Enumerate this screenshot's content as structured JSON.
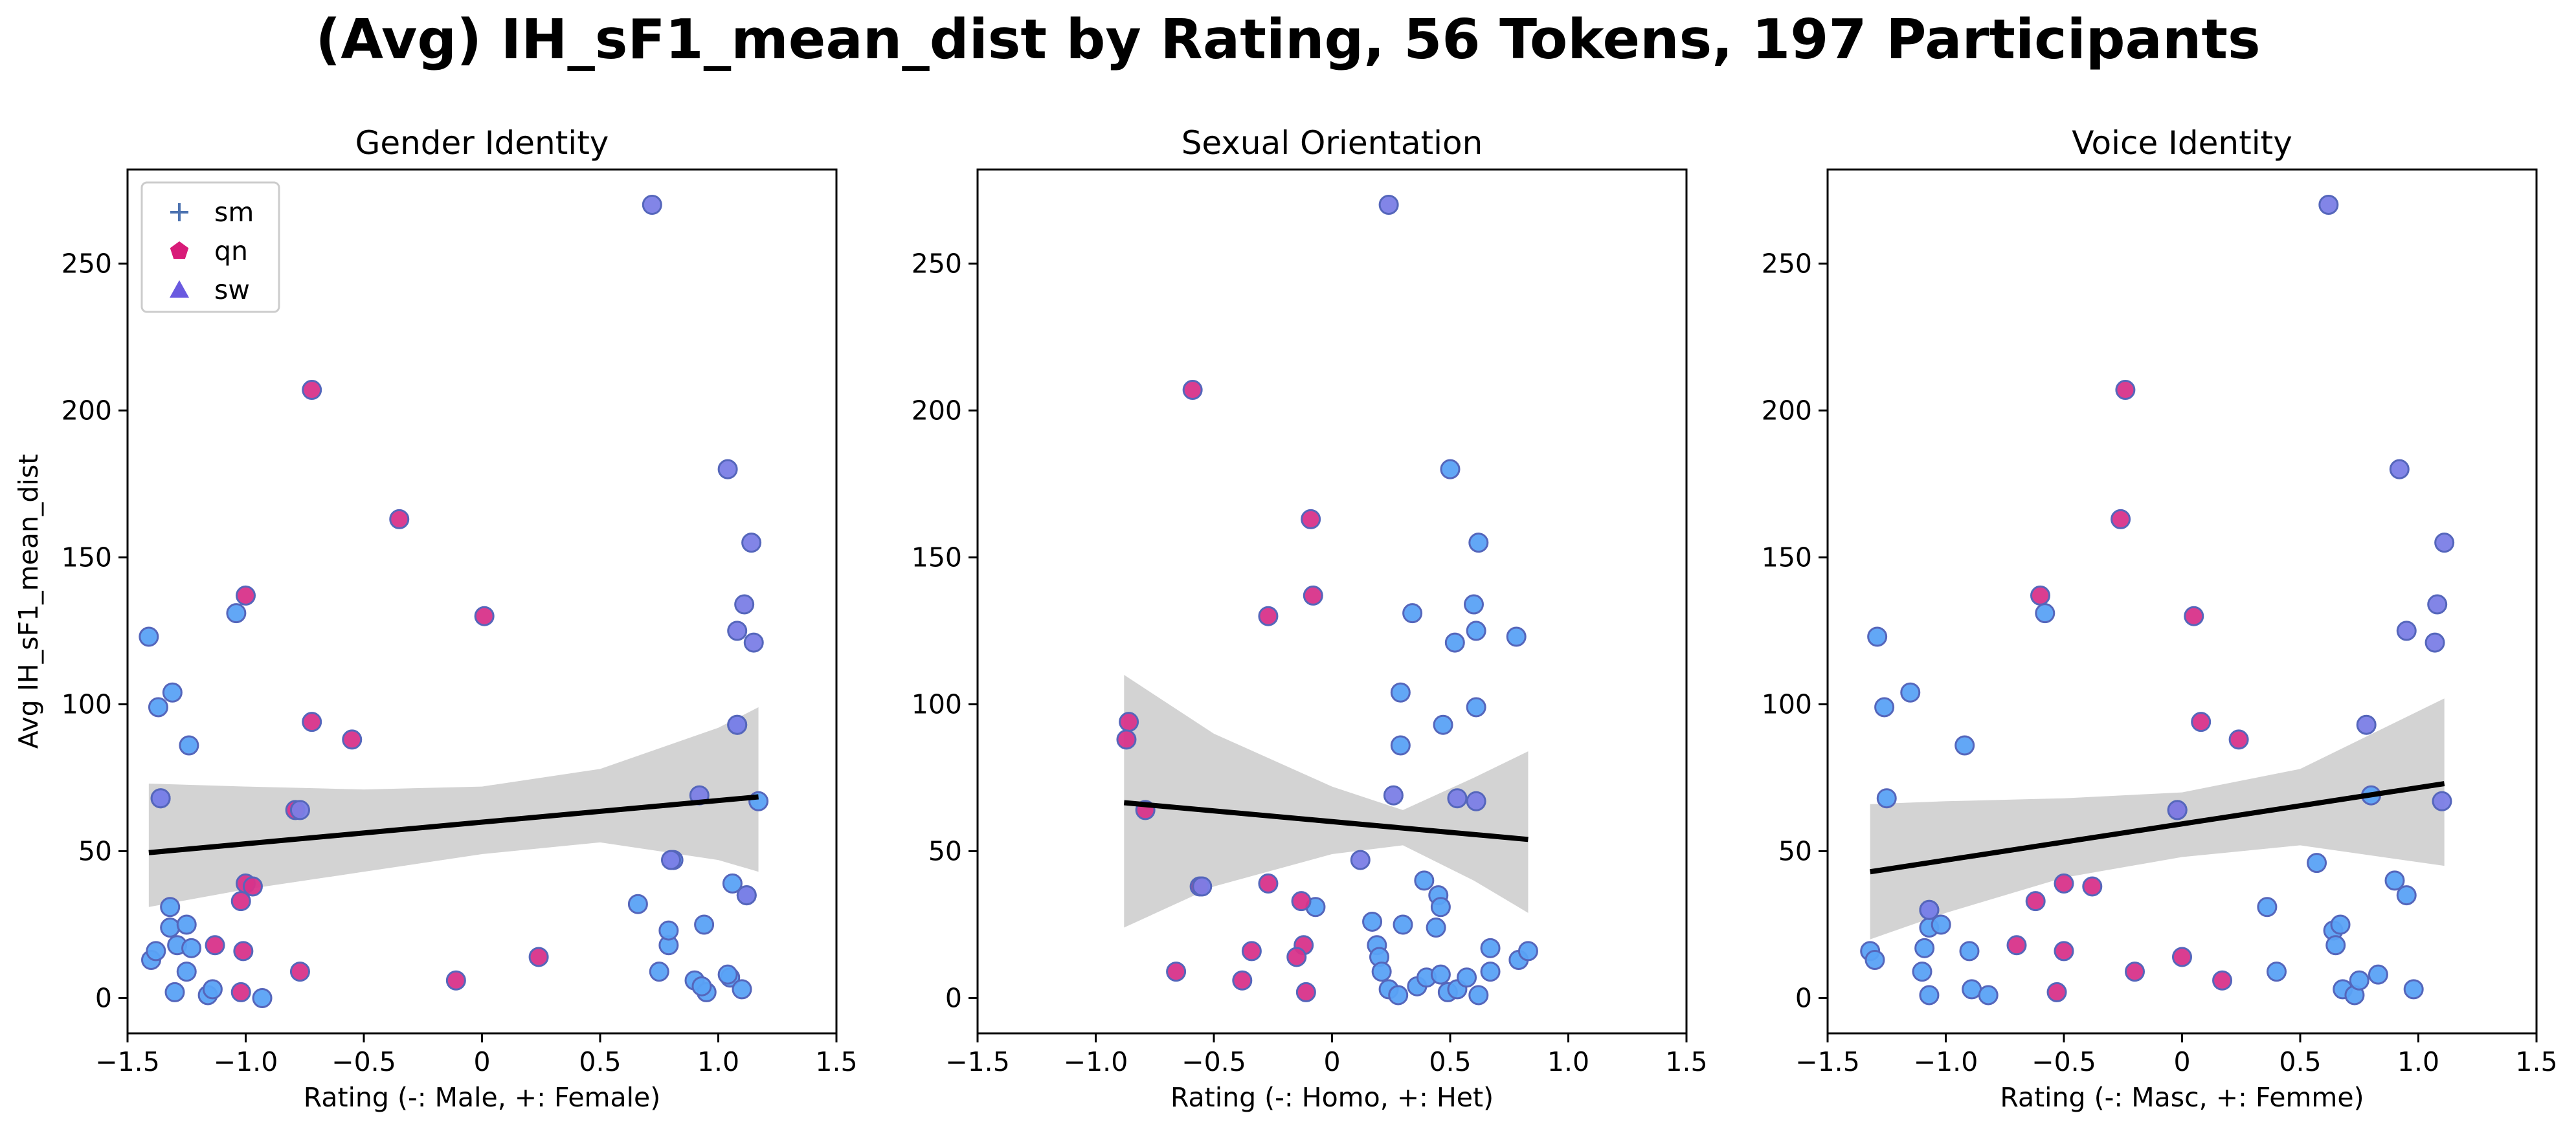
{
  "figure": {
    "title": "(Avg) IH_sF1_mean_dist by Rating, 56 Tokens, 197 Participants"
  },
  "legend": {
    "placement": "upper-left",
    "panel": 0,
    "items": [
      {
        "label": "sm",
        "marker": "plus",
        "color": "#4c72b0"
      },
      {
        "label": "qn",
        "marker": "pentagon",
        "color": "#d81b78"
      },
      {
        "label": "sw",
        "marker": "triangle",
        "color": "#6a5ae0"
      }
    ]
  },
  "colors": {
    "sm": "#5aa2f5",
    "qn": "#d8338a",
    "sw": "#7b7ee6",
    "marker_edge": "#5566bb",
    "fit_line": "#000000",
    "ci_band": "#d3d3d3"
  },
  "chart_data": [
    {
      "type": "scatter",
      "title": "Gender Identity",
      "xlabel": "Rating (-: Male, +: Female)",
      "ylabel": "Avg IH_sF1_mean_dist",
      "xlim": [
        -1.5,
        1.5
      ],
      "ylim": [
        -12,
        282
      ],
      "xticks": [
        -1.5,
        -1.0,
        -0.5,
        0.0,
        0.5,
        1.0,
        1.5
      ],
      "yticks": [
        0,
        50,
        100,
        150,
        200,
        250
      ],
      "series": [
        {
          "name": "sm",
          "points": [
            [
              -1.41,
              123
            ],
            [
              -1.37,
              99
            ],
            [
              -1.31,
              104
            ],
            [
              -1.24,
              86
            ],
            [
              -1.36,
              68
            ],
            [
              -1.4,
              13
            ],
            [
              -1.38,
              16
            ],
            [
              -1.32,
              24
            ],
            [
              -1.32,
              31
            ],
            [
              -1.29,
              18
            ],
            [
              -1.25,
              25
            ],
            [
              -1.23,
              17
            ],
            [
              -1.25,
              9
            ],
            [
              -1.3,
              2
            ],
            [
              -1.16,
              1
            ],
            [
              -1.14,
              3
            ],
            [
              -1.04,
              131
            ],
            [
              -0.93,
              0
            ],
            [
              0.66,
              32
            ],
            [
              0.75,
              9
            ],
            [
              0.79,
              18
            ],
            [
              0.79,
              23
            ],
            [
              0.81,
              47
            ],
            [
              0.9,
              6
            ],
            [
              0.94,
              25
            ],
            [
              0.95,
              2
            ],
            [
              1.05,
              7
            ],
            [
              1.06,
              39
            ],
            [
              1.08,
              93
            ],
            [
              1.1,
              3
            ],
            [
              1.12,
              35
            ],
            [
              1.17,
              67
            ],
            [
              1.04,
              8
            ],
            [
              0.93,
              4
            ]
          ]
        },
        {
          "name": "qn",
          "points": [
            [
              -0.72,
              207
            ],
            [
              -0.35,
              163
            ],
            [
              -1.0,
              137
            ],
            [
              0.01,
              130
            ],
            [
              -0.72,
              94
            ],
            [
              -0.55,
              88
            ],
            [
              -0.79,
              64
            ],
            [
              -1.0,
              39
            ],
            [
              -0.97,
              38
            ],
            [
              -1.02,
              33
            ],
            [
              -1.01,
              16
            ],
            [
              -1.13,
              18
            ],
            [
              -0.77,
              9
            ],
            [
              0.24,
              14
            ],
            [
              -0.11,
              6
            ],
            [
              -1.02,
              2
            ]
          ]
        },
        {
          "name": "sw",
          "points": [
            [
              0.72,
              270
            ],
            [
              1.04,
              180
            ],
            [
              1.14,
              155
            ],
            [
              1.11,
              134
            ],
            [
              1.08,
              125
            ],
            [
              1.15,
              121
            ],
            [
              1.08,
              93
            ],
            [
              0.92,
              69
            ],
            [
              -1.36,
              68
            ],
            [
              0.8,
              47
            ],
            [
              1.12,
              35
            ],
            [
              -0.77,
              64
            ]
          ]
        }
      ],
      "fit": {
        "x": [
          -1.41,
          1.17
        ],
        "y": [
          49.5,
          68.5
        ]
      },
      "ci": {
        "x": [
          -1.41,
          -1.0,
          -0.5,
          0.0,
          0.5,
          1.0,
          1.17
        ],
        "upper": [
          73,
          72,
          71,
          72,
          78,
          92,
          99
        ],
        "lower": [
          31,
          37,
          43,
          49,
          53,
          47,
          43
        ]
      }
    },
    {
      "type": "scatter",
      "title": "Sexual Orientation",
      "xlabel": "Rating (-: Homo, +: Het)",
      "ylabel": "",
      "xlim": [
        -1.5,
        1.5
      ],
      "ylim": [
        -12,
        282
      ],
      "xticks": [
        -1.5,
        -1.0,
        -0.5,
        0.0,
        0.5,
        1.0,
        1.5
      ],
      "yticks": [
        0,
        50,
        100,
        150,
        200,
        250
      ],
      "series": [
        {
          "name": "sm",
          "points": [
            [
              0.34,
              131
            ],
            [
              0.29,
              104
            ],
            [
              0.29,
              86
            ],
            [
              0.5,
              180
            ],
            [
              0.52,
              121
            ],
            [
              0.6,
              134
            ],
            [
              0.62,
              155
            ],
            [
              0.61,
              125
            ],
            [
              0.78,
              123
            ],
            [
              0.61,
              99
            ],
            [
              0.47,
              93
            ],
            [
              0.45,
              35
            ],
            [
              0.46,
              31
            ],
            [
              0.39,
              40
            ],
            [
              0.44,
              24
            ],
            [
              0.3,
              25
            ],
            [
              0.17,
              26
            ],
            [
              0.19,
              18
            ],
            [
              0.2,
              14
            ],
            [
              0.21,
              9
            ],
            [
              0.24,
              3
            ],
            [
              0.28,
              1
            ],
            [
              0.36,
              4
            ],
            [
              0.4,
              7
            ],
            [
              0.46,
              8
            ],
            [
              0.49,
              2
            ],
            [
              0.53,
              3
            ],
            [
              0.57,
              7
            ],
            [
              0.62,
              1
            ],
            [
              0.67,
              17
            ],
            [
              0.67,
              9
            ],
            [
              0.79,
              13
            ],
            [
              0.83,
              16
            ],
            [
              -0.07,
              31
            ]
          ]
        },
        {
          "name": "qn",
          "points": [
            [
              -0.59,
              207
            ],
            [
              -0.09,
              163
            ],
            [
              -0.08,
              137
            ],
            [
              -0.27,
              130
            ],
            [
              -0.86,
              94
            ],
            [
              -0.87,
              88
            ],
            [
              -0.79,
              64
            ],
            [
              -0.56,
              38
            ],
            [
              -0.27,
              39
            ],
            [
              -0.13,
              33
            ],
            [
              -0.12,
              18
            ],
            [
              -0.15,
              14
            ],
            [
              -0.34,
              16
            ],
            [
              -0.38,
              6
            ],
            [
              -0.66,
              9
            ],
            [
              -0.11,
              2
            ]
          ]
        },
        {
          "name": "sw",
          "points": [
            [
              0.24,
              270
            ],
            [
              0.26,
              69
            ],
            [
              0.53,
              68
            ],
            [
              0.61,
              67
            ],
            [
              0.12,
              47
            ],
            [
              -0.55,
              38
            ]
          ]
        }
      ],
      "fit": {
        "x": [
          -0.88,
          0.83
        ],
        "y": [
          66.5,
          54
        ]
      },
      "ci": {
        "x": [
          -0.88,
          -0.5,
          0.0,
          0.3,
          0.6,
          0.83
        ],
        "upper": [
          110,
          90,
          72,
          64,
          75,
          84
        ],
        "lower": [
          24,
          38,
          49,
          52,
          40,
          29
        ]
      }
    },
    {
      "type": "scatter",
      "title": "Voice Identity",
      "xlabel": "Rating (-: Masc, +: Femme)",
      "ylabel": "",
      "xlim": [
        -1.5,
        1.5
      ],
      "ylim": [
        -12,
        282
      ],
      "xticks": [
        -1.5,
        -1.0,
        -0.5,
        0.0,
        0.5,
        1.0,
        1.5
      ],
      "yticks": [
        0,
        50,
        100,
        150,
        200,
        250
      ],
      "series": [
        {
          "name": "sm",
          "points": [
            [
              -1.29,
              123
            ],
            [
              -1.26,
              99
            ],
            [
              -1.15,
              104
            ],
            [
              -1.25,
              68
            ],
            [
              -0.92,
              86
            ],
            [
              -0.58,
              131
            ],
            [
              -1.32,
              16
            ],
            [
              -1.3,
              13
            ],
            [
              -1.09,
              17
            ],
            [
              -1.1,
              9
            ],
            [
              -1.07,
              24
            ],
            [
              -1.07,
              30
            ],
            [
              -1.02,
              25
            ],
            [
              -0.9,
              16
            ],
            [
              -0.89,
              3
            ],
            [
              -1.07,
              1
            ],
            [
              -0.82,
              1
            ],
            [
              0.36,
              31
            ],
            [
              0.4,
              9
            ],
            [
              0.57,
              46
            ],
            [
              0.64,
              23
            ],
            [
              0.65,
              18
            ],
            [
              0.67,
              25
            ],
            [
              0.68,
              3
            ],
            [
              0.73,
              1
            ],
            [
              0.75,
              6
            ],
            [
              0.83,
              8
            ],
            [
              0.9,
              40
            ],
            [
              0.95,
              35
            ],
            [
              0.98,
              3
            ],
            [
              0.8,
              69
            ]
          ]
        },
        {
          "name": "qn",
          "points": [
            [
              -0.24,
              207
            ],
            [
              -0.26,
              163
            ],
            [
              -0.6,
              137
            ],
            [
              0.05,
              130
            ],
            [
              0.08,
              94
            ],
            [
              0.24,
              88
            ],
            [
              -0.02,
              64
            ],
            [
              -0.5,
              39
            ],
            [
              -0.38,
              38
            ],
            [
              -0.62,
              33
            ],
            [
              -0.7,
              18
            ],
            [
              -0.5,
              16
            ],
            [
              0.0,
              14
            ],
            [
              -0.2,
              9
            ],
            [
              0.17,
              6
            ],
            [
              -0.53,
              2
            ]
          ]
        },
        {
          "name": "sw",
          "points": [
            [
              0.62,
              270
            ],
            [
              0.92,
              180
            ],
            [
              1.11,
              155
            ],
            [
              1.08,
              134
            ],
            [
              0.95,
              125
            ],
            [
              1.07,
              121
            ],
            [
              0.78,
              93
            ],
            [
              1.1,
              67
            ],
            [
              -0.02,
              64
            ],
            [
              -1.07,
              30
            ]
          ]
        }
      ],
      "fit": {
        "x": [
          -1.32,
          1.11
        ],
        "y": [
          43,
          73
        ]
      },
      "ci": {
        "x": [
          -1.32,
          -1.0,
          -0.5,
          0.0,
          0.5,
          1.11
        ],
        "upper": [
          66,
          67,
          68,
          70,
          78,
          102
        ],
        "lower": [
          20,
          29,
          41,
          48,
          52,
          45
        ]
      }
    }
  ]
}
